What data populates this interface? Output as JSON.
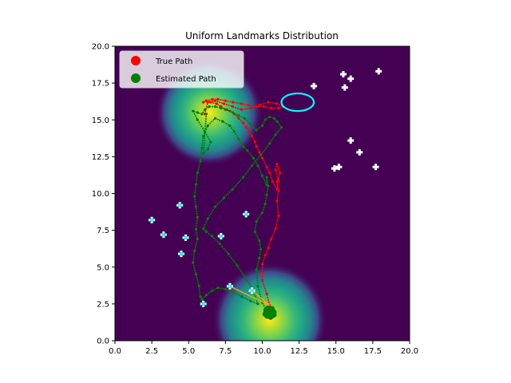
{
  "chart_data": {
    "type": "scatter",
    "title": "Uniform Landmarks Distribution",
    "xlabel": "",
    "ylabel": "",
    "xlim": [
      0,
      20
    ],
    "ylim": [
      0,
      20
    ],
    "x_ticks": [
      "0.0",
      "2.5",
      "5.0",
      "7.5",
      "10.0",
      "12.5",
      "15.0",
      "17.5",
      "20.0"
    ],
    "y_ticks": [
      "0.0",
      "2.5",
      "5.0",
      "7.5",
      "10.0",
      "12.5",
      "15.0",
      "17.5",
      "20.0"
    ],
    "grid": false,
    "legend_position": "top-left",
    "background_color": "#440154",
    "legend": [
      {
        "label": "True Path",
        "color": "#ff0000"
      },
      {
        "label": "Estimated Path",
        "color": "#008000"
      }
    ],
    "heat_blobs": [
      {
        "x": 6.4,
        "y": 15.5,
        "sigma": 1.4
      },
      {
        "x": 10.5,
        "y": 1.4,
        "sigma": 1.5
      }
    ],
    "landmarks_unobserved": {
      "color": "#ffffff",
      "points": [
        [
          13.5,
          17.3
        ],
        [
          15.5,
          18.1
        ],
        [
          16.0,
          17.8
        ],
        [
          15.6,
          17.2
        ],
        [
          17.9,
          18.3
        ],
        [
          16.0,
          13.6
        ],
        [
          16.6,
          12.8
        ],
        [
          14.9,
          11.7
        ],
        [
          15.2,
          11.8
        ],
        [
          17.7,
          11.8
        ]
      ]
    },
    "landmarks_observed": {
      "color": "#00ffff",
      "points": [
        [
          2.5,
          8.2
        ],
        [
          4.4,
          9.2
        ],
        [
          3.3,
          7.2
        ],
        [
          4.8,
          7.0
        ],
        [
          7.2,
          7.1
        ],
        [
          8.9,
          8.6
        ],
        [
          4.5,
          5.9
        ],
        [
          7.8,
          3.7
        ],
        [
          9.3,
          3.4
        ],
        [
          6.0,
          2.5
        ]
      ]
    },
    "covariance_ellipse": {
      "cx": 12.4,
      "cy": 16.2,
      "rx": 1.1,
      "ry": 0.6,
      "color": "#00ffff"
    },
    "observation_lines": {
      "origin": [
        10.5,
        2.4
      ],
      "targets": [
        [
          7.8,
          3.7
        ],
        [
          9.3,
          3.4
        ]
      ],
      "color": "#ffa500"
    },
    "series": [
      {
        "name": "True Path",
        "color": "#ff0000",
        "x": [
          10.5,
          10.3,
          10.0,
          10.0,
          10.2,
          10.4,
          10.6,
          10.9,
          11.1,
          11.0,
          11.1,
          11.0,
          11.2,
          11.0,
          10.9,
          11.1,
          11.0,
          10.7,
          10.5,
          10.3,
          10.0,
          9.8,
          9.6,
          9.5,
          9.3,
          9.1,
          8.9,
          8.7,
          8.4,
          8.1,
          7.8,
          7.5,
          7.2,
          6.9,
          6.5,
          6.2,
          6.0,
          6.2,
          6.6,
          7.0,
          7.5,
          8.0,
          8.6,
          9.1,
          9.6,
          10.1,
          10.6,
          11.1,
          11.4,
          11.0,
          10.4,
          9.8,
          9.2,
          8.6,
          8.0,
          7.4,
          6.8,
          6.3,
          6.1
        ],
        "y": [
          2.4,
          3.2,
          4.1,
          5.2,
          5.8,
          6.3,
          6.9,
          7.6,
          8.5,
          9.5,
          10.2,
          10.8,
          11.4,
          12.0,
          11.6,
          10.9,
          10.3,
          10.8,
          11.4,
          11.8,
          12.4,
          12.8,
          13.2,
          13.5,
          13.9,
          14.2,
          14.5,
          14.8,
          15.1,
          15.4,
          15.6,
          15.7,
          15.9,
          16.1,
          16.2,
          16.3,
          16.2,
          16.3,
          16.4,
          16.4,
          16.3,
          16.2,
          16.1,
          16.0,
          15.9,
          15.9,
          15.8,
          15.8,
          15.9,
          16.1,
          16.2,
          16.0,
          15.8,
          15.7,
          15.9,
          16.1,
          16.3,
          16.2,
          15.4
        ]
      },
      {
        "name": "Estimated Path",
        "color": "#008000",
        "x": [
          10.5,
          10.0,
          9.7,
          9.6,
          9.8,
          9.9,
          9.8,
          9.5,
          9.6,
          10.0,
          10.2,
          10.3,
          10.4,
          10.3,
          10.3,
          10.0,
          9.7,
          9.4,
          9.0,
          8.7,
          8.4,
          8.1,
          7.8,
          7.3,
          6.8,
          6.3,
          6.0,
          5.9,
          5.8,
          5.6,
          5.5,
          5.4,
          5.5,
          5.6,
          5.5,
          5.6,
          5.4,
          5.3,
          5.5,
          5.7,
          5.8,
          6.0,
          5.9,
          6.2,
          6.6,
          7.0,
          7.5,
          8.0,
          8.6,
          9.2,
          9.7,
          9.4,
          8.9,
          8.3,
          7.7,
          7.1,
          6.6,
          6.2,
          6.0,
          6.3,
          6.8,
          7.4,
          8.0,
          8.7,
          9.3,
          9.9,
          10.5,
          10.9,
          11.3,
          11.0,
          10.8,
          10.5,
          10.2,
          10.0,
          9.6,
          9.2,
          8.8,
          8.4,
          8.0,
          7.6,
          7.2,
          6.8,
          6.4,
          6.1,
          5.9,
          5.6,
          5.3,
          5.6,
          6.1,
          6.5,
          6.3,
          6.0,
          6.2
        ],
        "y": [
          1.6,
          2.6,
          3.7,
          4.8,
          5.6,
          6.2,
          6.8,
          7.4,
          8.1,
          8.7,
          9.3,
          9.9,
          10.5,
          11.1,
          10.6,
          11.2,
          11.9,
          12.4,
          12.9,
          13.2,
          13.7,
          14.2,
          14.6,
          14.9,
          15.1,
          14.6,
          13.9,
          13.1,
          12.2,
          11.4,
          10.6,
          9.8,
          9.1,
          8.4,
          7.6,
          6.9,
          6.1,
          5.3,
          4.5,
          3.7,
          3.0,
          2.6,
          2.8,
          3.1,
          3.4,
          3.6,
          3.5,
          3.3,
          3.0,
          2.7,
          2.5,
          3.4,
          4.2,
          5.1,
          5.9,
          6.6,
          7.1,
          7.4,
          7.6,
          8.3,
          9.1,
          9.7,
          10.3,
          11.1,
          11.9,
          12.6,
          13.4,
          14.0,
          14.5,
          14.9,
          15.1,
          15.2,
          15.0,
          14.6,
          14.3,
          14.7,
          15.1,
          15.3,
          15.5,
          15.7,
          15.8,
          15.9,
          15.9,
          15.7,
          15.4,
          15.5,
          15.6,
          15.0,
          14.2,
          13.5,
          13.0,
          12.7,
          15.4
        ]
      }
    ]
  }
}
